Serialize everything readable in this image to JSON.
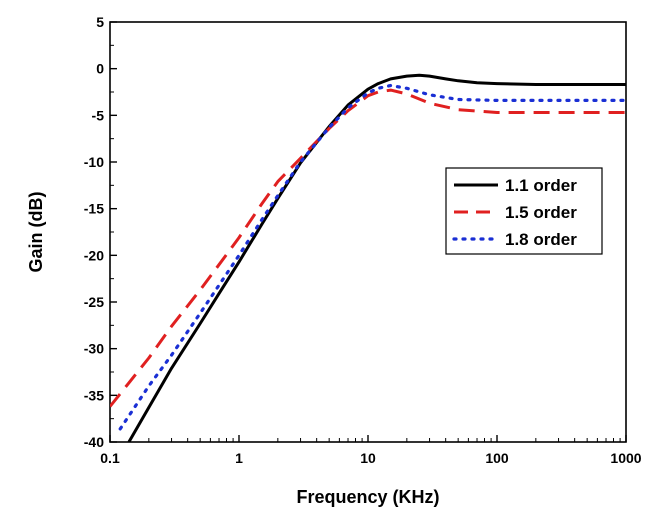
{
  "chart_data": {
    "type": "line",
    "xlabel": "Frequency (KHz)",
    "ylabel": "Gain (dB)",
    "xscale": "log",
    "xlim": [
      0.1,
      1000
    ],
    "ylim": [
      -40,
      5
    ],
    "xticks": [
      0.1,
      1,
      10,
      100,
      1000
    ],
    "xtick_labels": [
      "0.1",
      "1",
      "10",
      "100",
      "1000"
    ],
    "yticks": [
      5,
      0,
      -5,
      -10,
      -15,
      -20,
      -25,
      -30,
      -35,
      -40
    ],
    "ytick_labels": [
      "5",
      "0",
      "-5",
      "-10",
      "-15",
      "-20",
      "-25",
      "-30",
      "-35",
      "-40"
    ],
    "grid": false,
    "legend_position": "right",
    "series": [
      {
        "name": "1.1 order",
        "color": "#000000",
        "style": "solid",
        "x": [
          0.14,
          0.2,
          0.3,
          0.5,
          0.7,
          1,
          1.5,
          2,
          3,
          5,
          7,
          10,
          12,
          15,
          20,
          25,
          30,
          40,
          50,
          70,
          100,
          200,
          500,
          1000
        ],
        "y": [
          -40,
          -36.3,
          -32.1,
          -27.3,
          -24.1,
          -20.7,
          -16.7,
          -13.9,
          -10.1,
          -6.2,
          -3.9,
          -2.2,
          -1.6,
          -1.1,
          -0.8,
          -0.7,
          -0.8,
          -1.1,
          -1.3,
          -1.5,
          -1.6,
          -1.7,
          -1.7,
          -1.7
        ]
      },
      {
        "name": "1.5 order",
        "color": "#e02020",
        "style": "dashed",
        "x": [
          0.1,
          0.2,
          0.3,
          0.5,
          0.7,
          1,
          1.5,
          2,
          3,
          5,
          7,
          10,
          12,
          15,
          20,
          30,
          50,
          100,
          200,
          500,
          1000
        ],
        "y": [
          -36.2,
          -31,
          -27.6,
          -23.7,
          -21,
          -18.1,
          -14.5,
          -12.1,
          -9.6,
          -6.4,
          -4.5,
          -2.9,
          -2.5,
          -2.3,
          -2.7,
          -3.7,
          -4.4,
          -4.7,
          -4.7,
          -4.7,
          -4.7
        ]
      },
      {
        "name": "1.8 order",
        "color": "#1a2fd4",
        "style": "dotted",
        "x": [
          0.12,
          0.2,
          0.3,
          0.5,
          0.7,
          1,
          1.5,
          2,
          3,
          5,
          7,
          10,
          12,
          15,
          20,
          30,
          50,
          100,
          200,
          500,
          1000
        ],
        "y": [
          -38.6,
          -34,
          -30.7,
          -26.2,
          -23.2,
          -20,
          -16.2,
          -13.6,
          -10,
          -6.3,
          -4.2,
          -2.6,
          -2.1,
          -1.8,
          -2.1,
          -2.8,
          -3.3,
          -3.4,
          -3.4,
          -3.4,
          -3.4
        ]
      }
    ]
  }
}
